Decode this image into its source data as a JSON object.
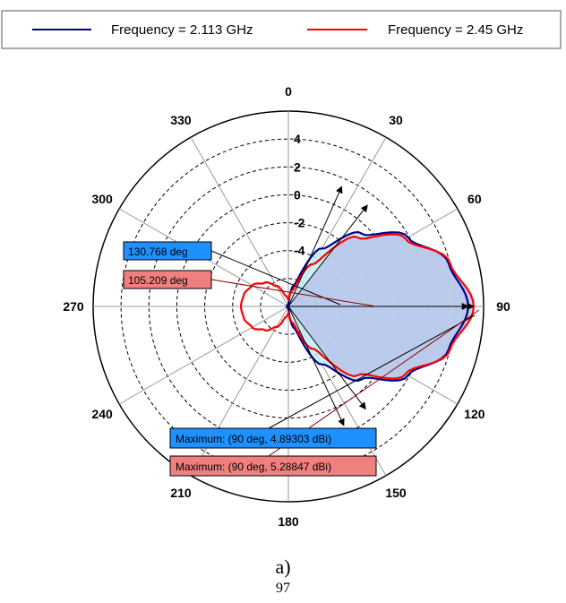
{
  "legend": {
    "items": [
      {
        "label": "Frequency = 2.113 GHz",
        "color": "#00008b"
      },
      {
        "label": "Frequency = 2.45 GHz",
        "color": "#ff0000"
      }
    ]
  },
  "chart_data": {
    "type": "polar",
    "angle_unit": "deg",
    "radial_unit": "dBi",
    "angular_ticks": [
      "0",
      "30",
      "60",
      "90",
      "120",
      "150",
      "180",
      "210",
      "240",
      "270",
      "300",
      "330"
    ],
    "radial_ticks": [
      "4",
      "2",
      "0",
      "-2",
      "-4"
    ],
    "rlim": [
      -8,
      6
    ],
    "grid": true,
    "legend_position": "top",
    "series": [
      {
        "name": "Frequency = 2.113 GHz",
        "color": "#00008b",
        "theta": [
          0,
          15,
          30,
          45,
          60,
          75,
          90,
          105,
          120,
          135,
          150,
          165,
          180,
          195,
          210,
          225,
          240,
          255,
          270,
          285,
          300,
          315,
          330,
          345
        ],
        "r": [
          -7.9,
          -6.4,
          -3.2,
          -0.6,
          1.9,
          3.9,
          4.89,
          3.9,
          1.9,
          -0.6,
          -3.2,
          -6.4,
          -7.9,
          -7.9,
          -7.9,
          -7.9,
          -7.9,
          -7.9,
          -7.9,
          -7.9,
          -7.9,
          -7.9,
          -7.9,
          -7.9
        ],
        "beamwidth_deg": 130.768,
        "maximum": {
          "angle": 90,
          "value": 4.89303
        }
      },
      {
        "name": "Frequency = 2.45 GHz",
        "color": "#ff0000",
        "theta": [
          0,
          15,
          30,
          45,
          60,
          75,
          90,
          105,
          120,
          135,
          150,
          165,
          180,
          195,
          210,
          225,
          240,
          255,
          270,
          285,
          300,
          315,
          330,
          345
        ],
        "r": [
          -7.5,
          -6.8,
          -4.5,
          -1.0,
          1.7,
          4.0,
          5.29,
          4.0,
          1.7,
          -1.0,
          -4.5,
          -6.8,
          -7.5,
          -7.2,
          -6.3,
          -5.6,
          -5.0,
          -4.7,
          -4.6,
          -4.7,
          -5.0,
          -5.6,
          -6.3,
          -7.2
        ],
        "beamwidth_deg": 105.209,
        "maximum": {
          "angle": 90,
          "value": 5.28847
        }
      }
    ],
    "annotations": [
      {
        "text": "130.768 deg",
        "series": 0,
        "box_color": "#1e90ff"
      },
      {
        "text": "105.209 deg",
        "series": 1,
        "box_color": "#f08080"
      },
      {
        "text": "Maximum: (90 deg, 4.89303 dBi)",
        "series": 0,
        "box_color": "#1e90ff"
      },
      {
        "text": "Maximum: (90 deg, 5.28847 dBi)",
        "series": 1,
        "box_color": "#f08080"
      }
    ]
  },
  "caption": "a)",
  "page_number": "97"
}
